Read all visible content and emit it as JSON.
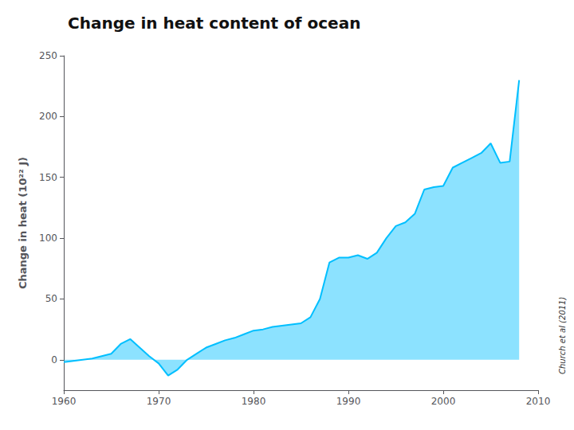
{
  "chart_data": {
    "type": "area",
    "title": "Change in heat content of ocean",
    "ylabel": "Change in heat (10²² J)",
    "annotations": [
      "Church et al (2011)"
    ],
    "color": "#00bfff",
    "x": [
      1960,
      1961,
      1962,
      1963,
      1964,
      1965,
      1966,
      1967,
      1968,
      1969,
      1970,
      1971,
      1972,
      1973,
      1974,
      1975,
      1976,
      1977,
      1978,
      1979,
      1980,
      1981,
      1982,
      1983,
      1984,
      1985,
      1986,
      1987,
      1988,
      1989,
      1990,
      1991,
      1992,
      1993,
      1994,
      1995,
      1996,
      1997,
      1998,
      1999,
      2000,
      2001,
      2002,
      2003,
      2004,
      2005,
      2006,
      2007,
      2008
    ],
    "values": [
      -2,
      -1,
      0,
      1,
      3,
      5,
      13,
      17,
      10,
      3,
      -3,
      -13,
      -8,
      0,
      5,
      10,
      13,
      16,
      18,
      21,
      24,
      25,
      27,
      28,
      29,
      30,
      35,
      50,
      80,
      84,
      84,
      86,
      83,
      88,
      100,
      110,
      113,
      120,
      140,
      142,
      143,
      158,
      162,
      166,
      170,
      178,
      162,
      163,
      230
    ],
    "xlim": [
      1960,
      2010
    ],
    "xticks": [
      1960,
      1970,
      1980,
      1990,
      2000,
      2010
    ],
    "ylim": [
      -25,
      250
    ],
    "yticks": [
      0,
      50,
      100,
      150,
      200,
      250
    ],
    "grid": false
  }
}
